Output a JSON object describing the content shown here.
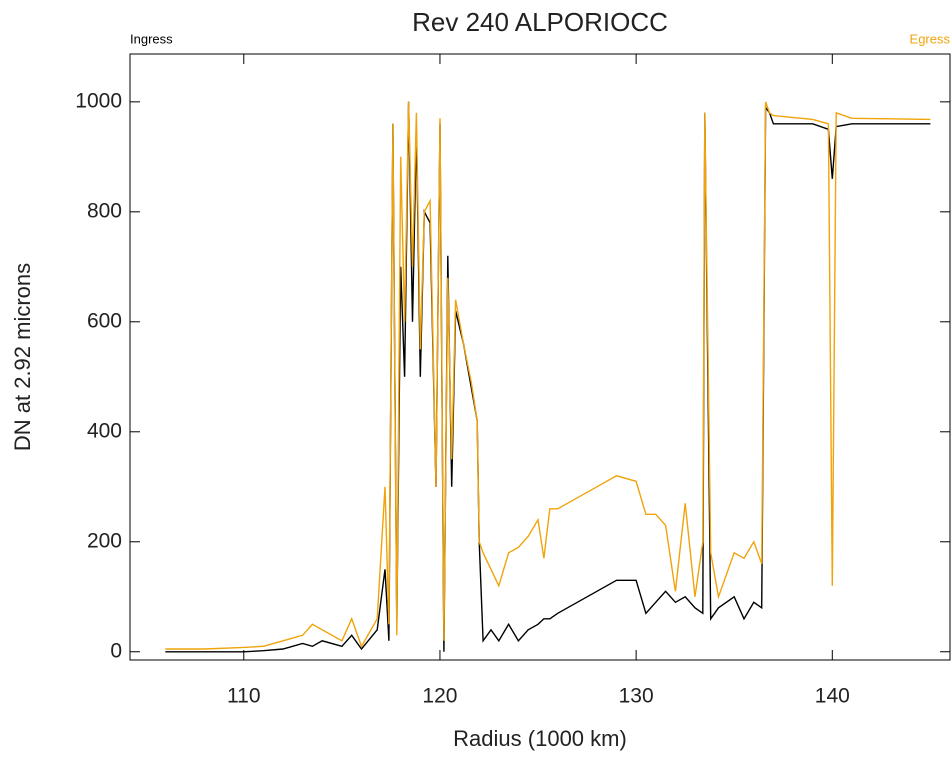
{
  "chart_data": {
    "type": "line",
    "title": "Rev 240 ALPORIOCC",
    "xlabel": "Radius (1000 km)",
    "ylabel": "DN at 2.92 microns",
    "xlim": [
      104.2,
      146
    ],
    "ylim": [
      -15,
      1087
    ],
    "xticks": [
      110,
      120,
      130,
      140
    ],
    "yticks": [
      0,
      200,
      400,
      600,
      800,
      1000
    ],
    "x": [
      106,
      108,
      110,
      111,
      112,
      113,
      113.5,
      114,
      115,
      115.5,
      116,
      116.8,
      117.2,
      117.4,
      117.6,
      117.8,
      118,
      118.2,
      118.4,
      118.6,
      118.8,
      119,
      119.2,
      119.5,
      119.8,
      120,
      120.2,
      120.4,
      120.6,
      120.8,
      121.2,
      121.6,
      121.9,
      122,
      122.2,
      122.6,
      123,
      123.5,
      124,
      124.5,
      125,
      125.3,
      125.6,
      126,
      127,
      128,
      129,
      130,
      130.5,
      131,
      131.5,
      132,
      132.5,
      133,
      133.4,
      133.5,
      133.8,
      134.2,
      135,
      135.5,
      136,
      136.4,
      136.6,
      136.8,
      137,
      139,
      139.8,
      140,
      140.2,
      141,
      145
    ],
    "series": [
      {
        "name": "Ingress",
        "color": "#000000",
        "values": [
          0,
          0,
          0,
          2,
          5,
          15,
          10,
          20,
          10,
          30,
          5,
          40,
          150,
          20,
          960,
          50,
          700,
          500,
          1000,
          600,
          950,
          500,
          800,
          780,
          300,
          960,
          0,
          720,
          300,
          620,
          560,
          480,
          420,
          200,
          20,
          40,
          20,
          50,
          20,
          40,
          50,
          60,
          60,
          70,
          90,
          110,
          130,
          130,
          70,
          90,
          110,
          90,
          100,
          80,
          70,
          980,
          60,
          80,
          100,
          60,
          90,
          80,
          990,
          980,
          960,
          960,
          950,
          860,
          955,
          960,
          960
        ]
      },
      {
        "name": "Egress",
        "color": "#f0a30a",
        "values": [
          5,
          5,
          8,
          10,
          20,
          30,
          50,
          40,
          20,
          60,
          10,
          60,
          300,
          50,
          960,
          30,
          900,
          600,
          1000,
          700,
          980,
          550,
          800,
          820,
          300,
          970,
          20,
          680,
          350,
          640,
          560,
          490,
          420,
          200,
          180,
          150,
          120,
          180,
          190,
          210,
          240,
          170,
          260,
          260,
          280,
          300,
          320,
          310,
          250,
          250,
          230,
          110,
          270,
          100,
          200,
          980,
          180,
          100,
          180,
          170,
          200,
          160,
          1000,
          980,
          975,
          968,
          960,
          120,
          980,
          970,
          968
        ]
      }
    ]
  }
}
